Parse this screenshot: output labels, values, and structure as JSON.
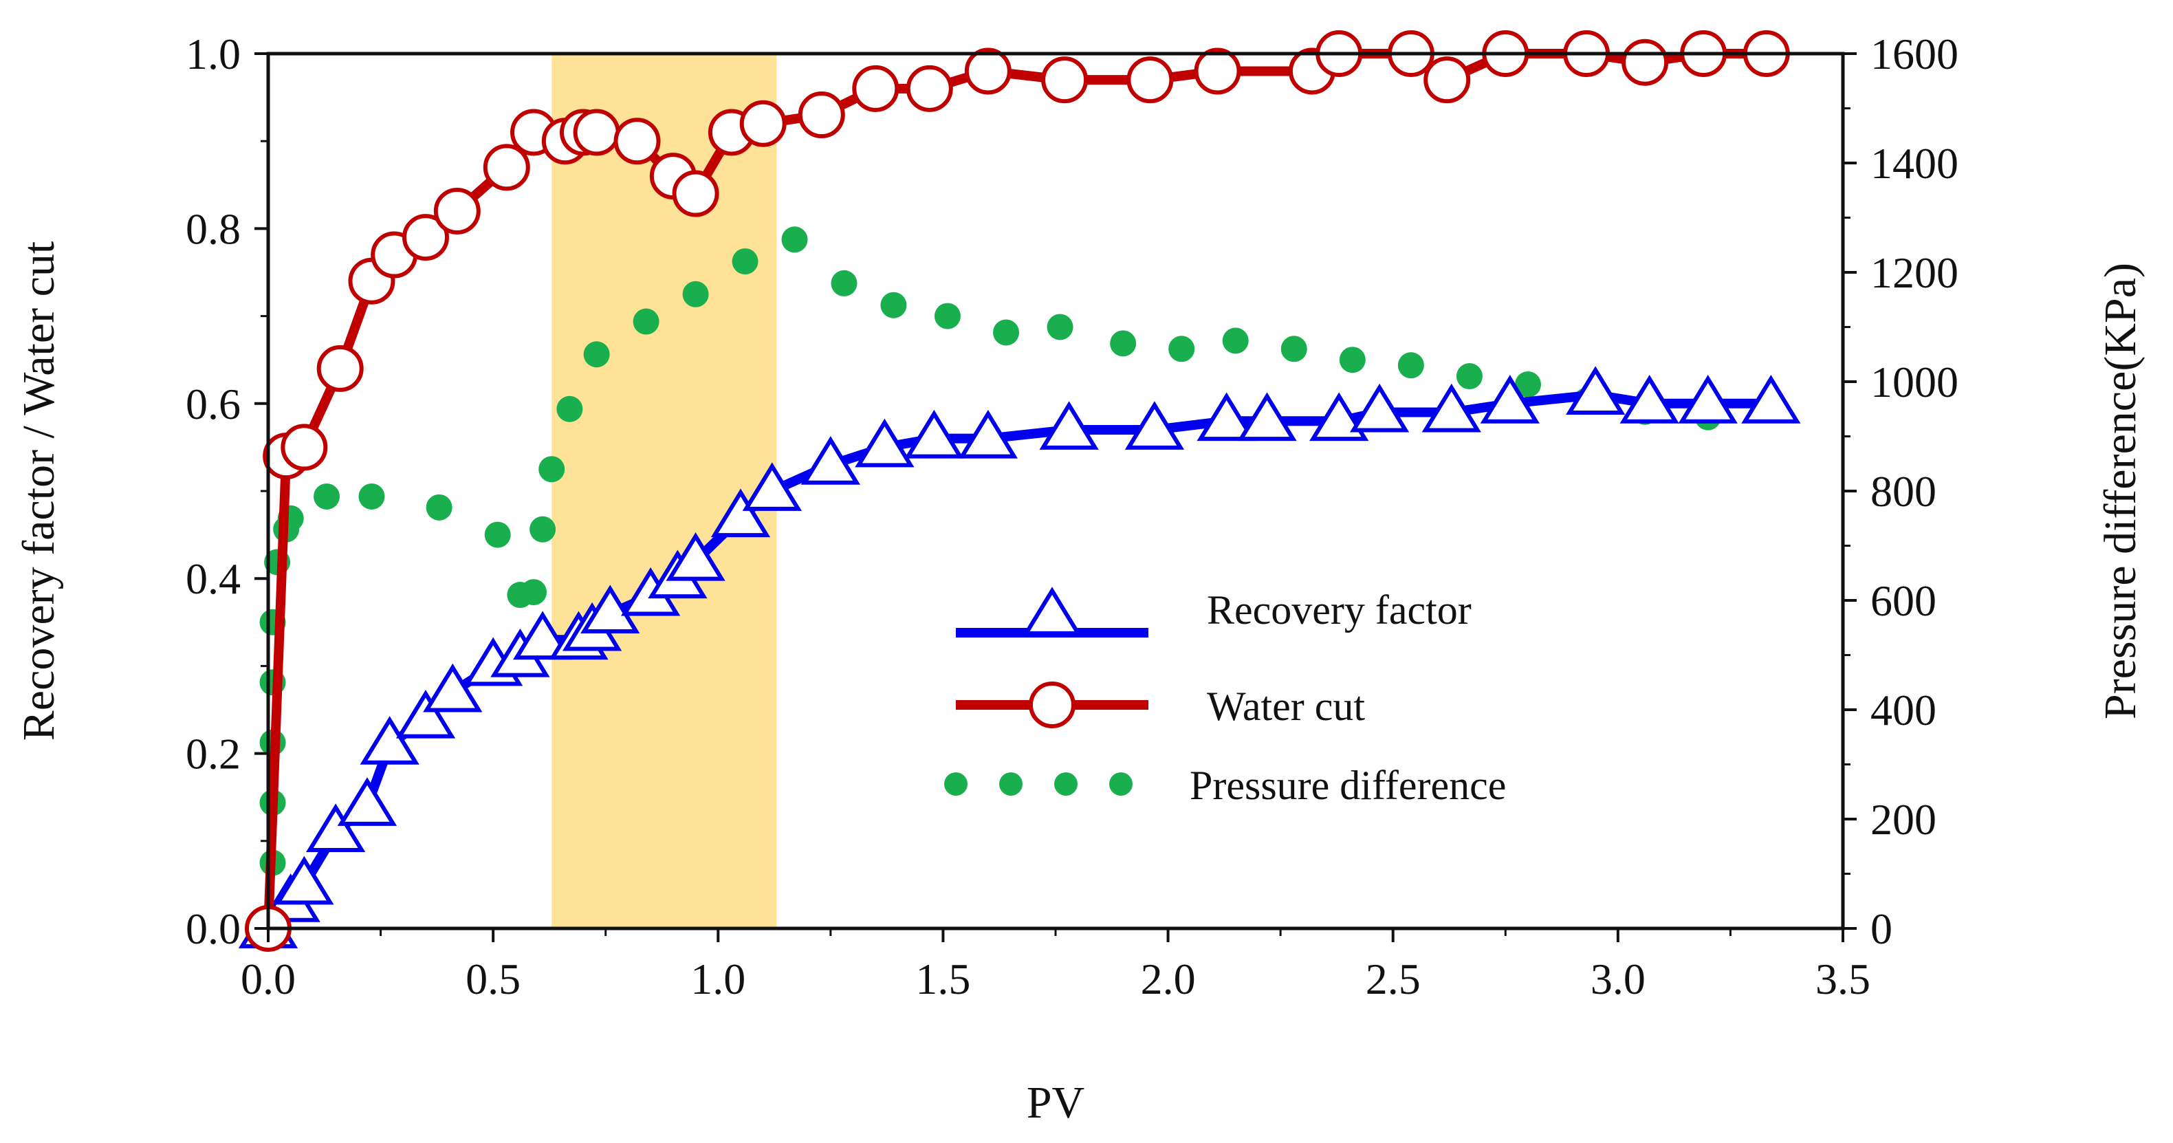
{
  "chart_data": {
    "type": "line",
    "title": "",
    "xlabel": "PV",
    "ylabel": "Recovery factor / Water cut",
    "y2label": "Pressure difference(KPa)",
    "xlim": [
      0,
      3.5
    ],
    "ylim": [
      0,
      1.0
    ],
    "y2lim": [
      0,
      1600
    ],
    "x_ticks": [
      "0.0",
      "0.5",
      "1.0",
      "1.5",
      "2.0",
      "2.5",
      "3.0",
      "3.5"
    ],
    "y_ticks": [
      "0.0",
      "0.2",
      "0.4",
      "0.6",
      "0.8",
      "1.0"
    ],
    "y2_ticks": [
      "0",
      "200",
      "400",
      "600",
      "800",
      "1000",
      "1200",
      "1400",
      "1600"
    ],
    "highlight_region": {
      "x_start": 0.63,
      "x_end": 1.13,
      "color": "#FDE08E"
    },
    "legend_position": "center-right",
    "series": [
      {
        "name": "Recovery factor",
        "axis": "left",
        "color": "#0000EE",
        "marker": "triangle",
        "x": [
          0.0,
          0.05,
          0.08,
          0.15,
          0.22,
          0.27,
          0.35,
          0.41,
          0.5,
          0.56,
          0.61,
          0.69,
          0.72,
          0.76,
          0.85,
          0.91,
          0.95,
          1.05,
          1.12,
          1.25,
          1.37,
          1.48,
          1.6,
          1.78,
          1.97,
          2.13,
          2.22,
          2.38,
          2.47,
          2.63,
          2.76,
          2.95,
          3.07,
          3.2,
          3.34
        ],
        "values": [
          0.0,
          0.03,
          0.05,
          0.11,
          0.14,
          0.21,
          0.24,
          0.27,
          0.3,
          0.31,
          0.33,
          0.33,
          0.34,
          0.36,
          0.38,
          0.4,
          0.42,
          0.47,
          0.5,
          0.53,
          0.55,
          0.56,
          0.56,
          0.57,
          0.57,
          0.58,
          0.58,
          0.58,
          0.59,
          0.59,
          0.6,
          0.61,
          0.6,
          0.6,
          0.6
        ]
      },
      {
        "name": "Water cut",
        "axis": "left",
        "color": "#C00000",
        "marker": "circle",
        "x": [
          0.0,
          0.04,
          0.08,
          0.16,
          0.23,
          0.28,
          0.35,
          0.42,
          0.53,
          0.59,
          0.66,
          0.7,
          0.73,
          0.82,
          0.9,
          0.95,
          1.03,
          1.1,
          1.23,
          1.35,
          1.47,
          1.6,
          1.77,
          1.96,
          2.11,
          2.32,
          2.38,
          2.54,
          2.62,
          2.75,
          2.93,
          3.06,
          3.19,
          3.33
        ],
        "values": [
          0.0,
          0.54,
          0.55,
          0.64,
          0.74,
          0.77,
          0.79,
          0.82,
          0.87,
          0.91,
          0.9,
          0.91,
          0.91,
          0.9,
          0.86,
          0.84,
          0.91,
          0.92,
          0.93,
          0.96,
          0.96,
          0.98,
          0.97,
          0.97,
          0.98,
          0.98,
          1.0,
          1.0,
          0.97,
          1.0,
          1.0,
          0.99,
          1.0,
          1.0
        ]
      },
      {
        "name": "Pressure difference",
        "axis": "right",
        "color": "#1AAF4E",
        "marker": "dot",
        "x": [
          0.0,
          0.01,
          0.01,
          0.01,
          0.01,
          0.01,
          0.02,
          0.04,
          0.05,
          0.13,
          0.23,
          0.38,
          0.51,
          0.56,
          0.59,
          0.61,
          0.63,
          0.67,
          0.73,
          0.84,
          0.95,
          1.06,
          1.17,
          1.28,
          1.39,
          1.51,
          1.64,
          1.76,
          1.9,
          2.03,
          2.15,
          2.28,
          2.41,
          2.54,
          2.67,
          2.8,
          2.93,
          3.06,
          3.2
        ],
        "values": [
          0,
          120,
          230,
          340,
          450,
          560,
          670,
          730,
          750,
          790,
          790,
          770,
          720,
          610,
          615,
          730,
          840,
          950,
          1050,
          1110,
          1160,
          1220,
          1260,
          1180,
          1140,
          1120,
          1090,
          1100,
          1070,
          1060,
          1075,
          1060,
          1040,
          1030,
          1010,
          995,
          965,
          945,
          935
        ]
      }
    ]
  }
}
